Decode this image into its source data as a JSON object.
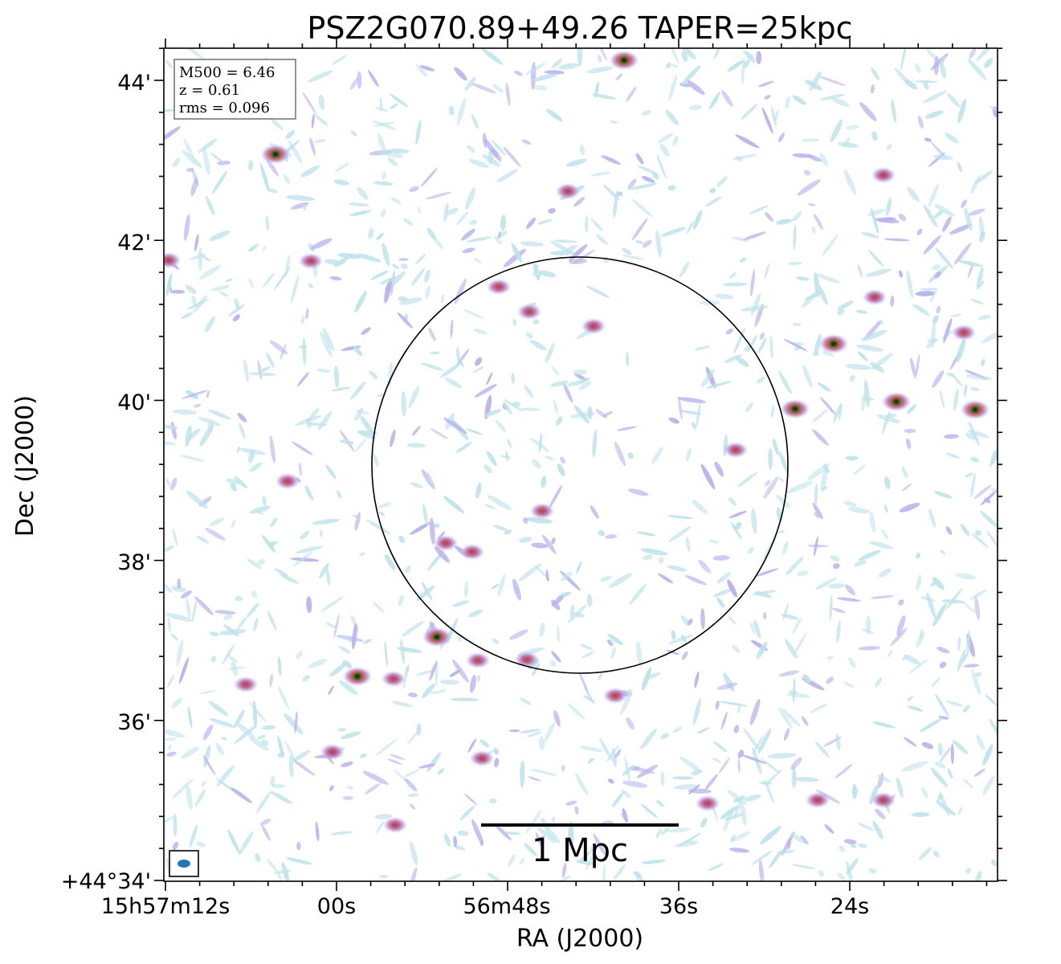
{
  "title": "PSZ2G070.89+49.26 TAPER=25kpc",
  "axes": {
    "xlabel": "RA (J2000)",
    "ylabel": "Dec (J2000)",
    "x_ticks": [
      "15h57m12s",
      "00s",
      "56m48s",
      "36s",
      "24s"
    ],
    "y_ticks": [
      "+44°34'",
      "36'",
      "38'",
      "40'",
      "42'",
      "44'"
    ]
  },
  "info_box": {
    "line1": "M500 = 6.46",
    "line2": "z = 0.61",
    "line3": "rms = 0.096"
  },
  "scalebar": {
    "label": "1 Mpc"
  },
  "colors": {
    "noise_low": "#bfe3ea",
    "noise_mid": "#b9b2ec",
    "source_mid": "#cc6a9a",
    "source_core": "#1f6b3a",
    "beam": "#1f77b4"
  },
  "overlay": {
    "circle": "black circle marking cluster aperture"
  }
}
